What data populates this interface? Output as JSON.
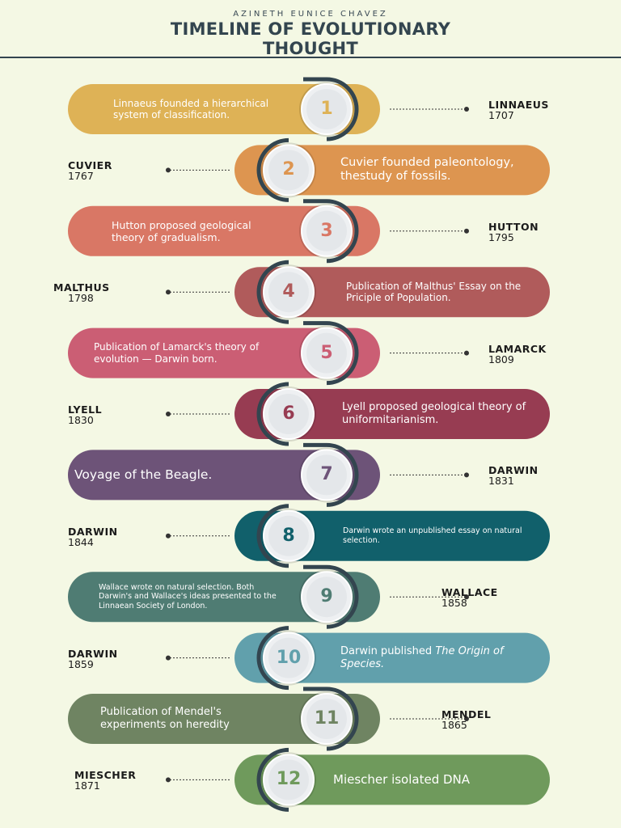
{
  "header": {
    "author": "AZINETH EUNICE CHAVEZ",
    "title_line1": "TIMELINE OF EVOLUTIONARY",
    "title_line2": "THOUGHT"
  },
  "colors": {
    "background": "#f4f8e4",
    "ink": "#33454f",
    "circle": "#eef0f2"
  },
  "events": [
    {
      "number": "1",
      "text": "Linnaeus founded a hierarchical system of classification.",
      "name": "LINNAEUS",
      "year": "1707",
      "color": "#deb256"
    },
    {
      "number": "2",
      "text": "Cuvier founded paleontology, thestudy of fossils.",
      "name": "CUVIER",
      "year": "1767",
      "color": "#dd9550"
    },
    {
      "number": "3",
      "text": "Hutton proposed geological theory of gradualism.",
      "name": "HUTTON",
      "year": "1795",
      "color": "#d97765"
    },
    {
      "number": "4",
      "text": "Publication of Malthus' Essay on the Priciple of Population.",
      "name": "MALTHUS",
      "year": "1798",
      "color": "#b05b5b"
    },
    {
      "number": "5",
      "text": "Publication of Lamarck's theory of evolution — Darwin born.",
      "name": "LAMARCK",
      "year": "1809",
      "color": "#cb5e74"
    },
    {
      "number": "6",
      "text": "Lyell proposed geological theory of uniformitarianism.",
      "name": "LYELL",
      "year": "1830",
      "color": "#973c52"
    },
    {
      "number": "7",
      "text": "Voyage of the Beagle.",
      "name": "DARWIN",
      "year": "1831",
      "color": "#6d5378"
    },
    {
      "number": "8",
      "text": "Darwin wrote an unpublished essay on natural selection.",
      "name": "DARWIN",
      "year": "1844",
      "color": "#11606b"
    },
    {
      "number": "9",
      "text": "Wallace wrote on natural selection. Both Darwin's and Wallace's ideas presented to the Linnaean Society of London.",
      "name": "WALLACE",
      "year": "1858",
      "color": "#4f7c73"
    },
    {
      "number": "10",
      "text_prefix": "Darwin published ",
      "text_italic": "The Origin of Species.",
      "name": "DARWIN",
      "year": "1859",
      "color": "#61a0ac"
    },
    {
      "number": "11",
      "text": "Publication of Mendel's experiments on heredity",
      "name": "MENDEL",
      "year": "1865",
      "color": "#6f8462"
    },
    {
      "number": "12",
      "text": "Miescher isolated DNA",
      "name": "MIESCHER",
      "year": "1871",
      "color": "#6f9a5c"
    }
  ]
}
